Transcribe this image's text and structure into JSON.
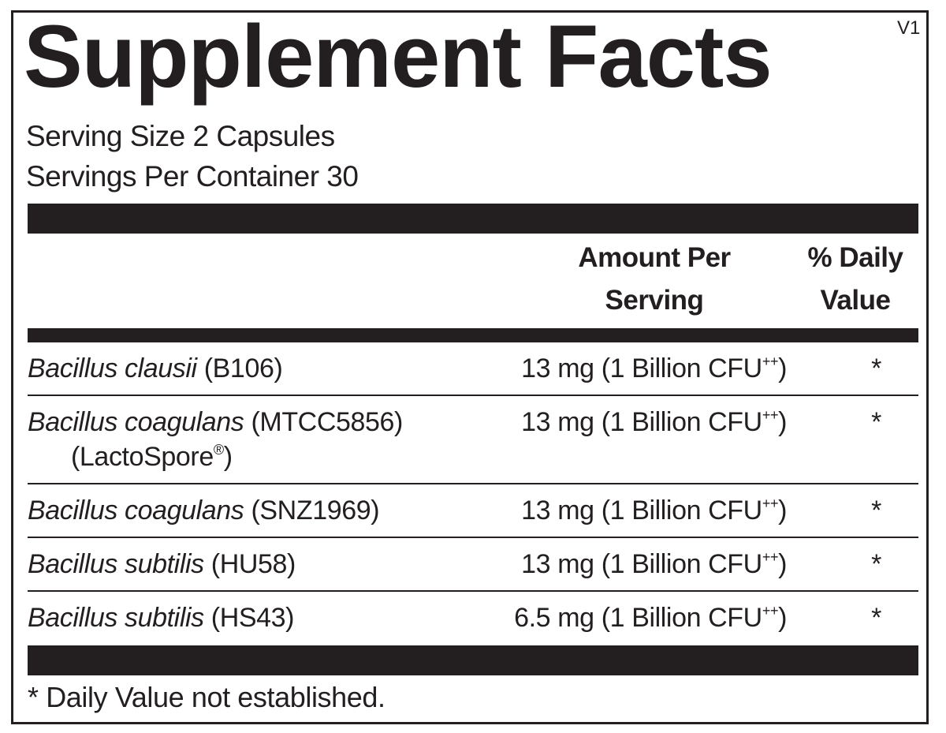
{
  "header": {
    "title": "Supplement Facts",
    "version": "V1",
    "serving_size": "Serving Size 2 Capsules",
    "servings_per_container": "Servings Per Container 30"
  },
  "table": {
    "columns": [
      [
        "Amount Per",
        "Serving"
      ],
      [
        "% Daily",
        "Value"
      ]
    ],
    "rows": [
      {
        "name": "Bacillus clausii",
        "strain": "(B106)",
        "amount": {
          "main": "13 mg (1 Billion CFU",
          "sup": "++",
          "end": ")"
        },
        "daily_value": "*"
      },
      {
        "name": "Bacillus coagulans",
        "strain": "(MTCC5856)",
        "strain_line2": {
          "main": "(LactoSpore",
          "sup": "®",
          "end": ")"
        },
        "amount": {
          "main": "13 mg (1 Billion CFU",
          "sup": "++",
          "end": ")"
        },
        "daily_value": "*"
      },
      {
        "name": "Bacillus coagulans",
        "strain": "(SNZ1969)",
        "amount": {
          "main": "13 mg (1 Billion CFU",
          "sup": "++",
          "end": ")"
        },
        "daily_value": "*"
      },
      {
        "name": "Bacillus subtilis",
        "strain": "(HU58)",
        "amount": {
          "main": "13 mg (1 Billion CFU",
          "sup": "++",
          "end": ")"
        },
        "daily_value": "*"
      },
      {
        "name": "Bacillus subtilis",
        "strain": "(HS43)",
        "amount": {
          "main": "6.5 mg (1 Billion CFU",
          "sup": "++",
          "end": ")"
        },
        "daily_value": "*"
      }
    ]
  },
  "footnote": "* Daily Value not established."
}
